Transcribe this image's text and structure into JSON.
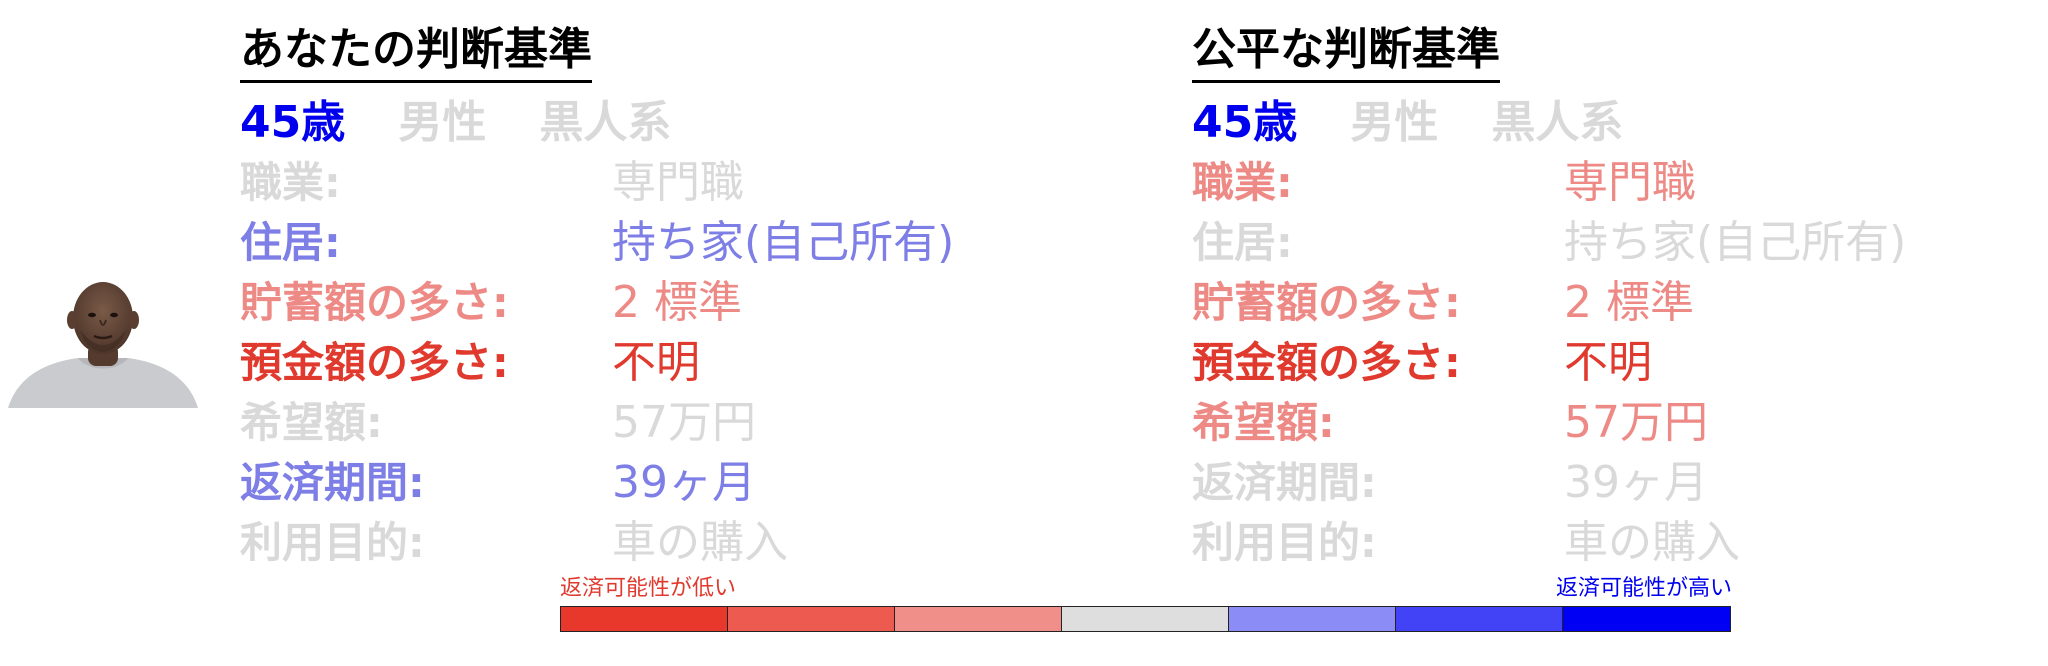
{
  "colors": {
    "faded": "#d9d9d9",
    "lowStrong": "#e03a2e",
    "lowMedium": "#ee8a86",
    "highMedium": "#7d7ee6",
    "highStrong": "#0000ee",
    "black": "#000000"
  },
  "avatar": {
    "icon": "person-portrait"
  },
  "left": {
    "title": "あなたの判断基準",
    "demographics": [
      {
        "text": "45歳",
        "weight": "highStrong"
      },
      {
        "text": "男性",
        "weight": "faded"
      },
      {
        "text": "黒人系",
        "weight": "faded"
      }
    ],
    "rows": [
      {
        "label": "職業:",
        "value": "専門職",
        "weight": "faded"
      },
      {
        "label": "住居:",
        "value": "持ち家(自己所有)",
        "weight": "highMedium"
      },
      {
        "label": "貯蓄額の多さ:",
        "value": "2 標準",
        "weight": "lowMedium"
      },
      {
        "label": "預金額の多さ:",
        "value": "不明",
        "weight": "lowStrong"
      },
      {
        "label": "希望額:",
        "value": "57万円",
        "weight": "faded"
      },
      {
        "label": "返済期間:",
        "value": "39ヶ月",
        "weight": "highMedium"
      },
      {
        "label": "利用目的:",
        "value": "車の購入",
        "weight": "faded"
      }
    ]
  },
  "right": {
    "title": "公平な判断基準",
    "demographics": [
      {
        "text": "45歳",
        "weight": "highStrong"
      },
      {
        "text": "男性",
        "weight": "faded"
      },
      {
        "text": "黒人系",
        "weight": "faded"
      }
    ],
    "rows": [
      {
        "label": "職業:",
        "value": "専門職",
        "weight": "lowMedium"
      },
      {
        "label": "住居:",
        "value": "持ち家(自己所有)",
        "weight": "faded"
      },
      {
        "label": "貯蓄額の多さ:",
        "value": "2 標準",
        "weight": "lowMedium"
      },
      {
        "label": "預金額の多さ:",
        "value": "不明",
        "weight": "lowStrong"
      },
      {
        "label": "希望額:",
        "value": "57万円",
        "weight": "lowMedium"
      },
      {
        "label": "返済期間:",
        "value": "39ヶ月",
        "weight": "faded"
      },
      {
        "label": "利用目的:",
        "value": "車の購入",
        "weight": "faded"
      }
    ]
  },
  "scale": {
    "low_label": "返済可能性が低い",
    "high_label": "返済可能性が高い",
    "segments": [
      "#e8382c",
      "#ec5a50",
      "#f08e8a",
      "#dedede",
      "#8c8cf6",
      "#4242f6",
      "#0000f4"
    ]
  }
}
